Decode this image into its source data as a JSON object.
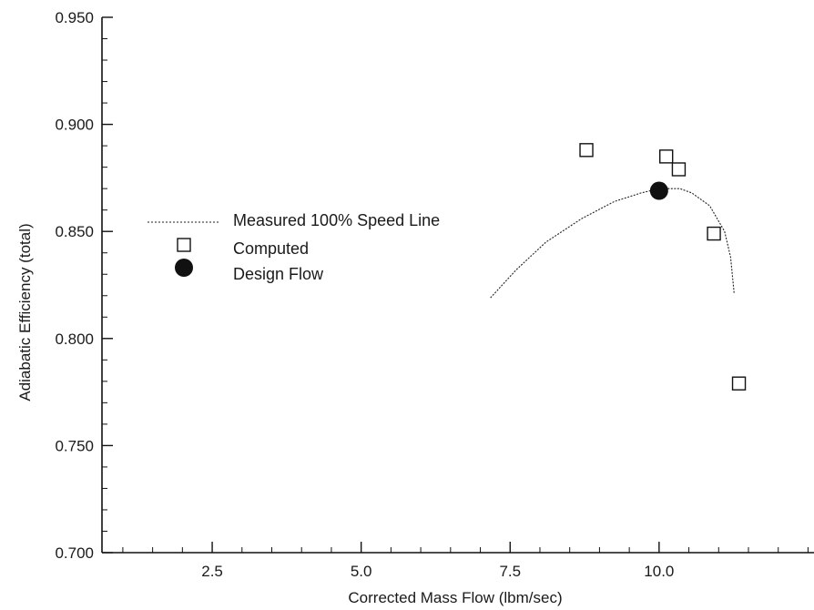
{
  "chart_data": {
    "type": "scatter",
    "xlabel": "Corrected Mass Flow (lbm/sec)",
    "ylabel": "Adiabatic Efficiency (total)",
    "xlim": [
      0.65,
      12.6
    ],
    "ylim": [
      0.7,
      0.95
    ],
    "x_ticks": [
      2.5,
      5.0,
      7.5,
      10.0
    ],
    "x_tick_labels": [
      "2.5",
      "5.0",
      "7.5",
      "10.0"
    ],
    "y_ticks": [
      0.7,
      0.75,
      0.8,
      0.85,
      0.9,
      0.95
    ],
    "y_tick_labels": [
      "0.700",
      "0.750",
      "0.800",
      "0.850",
      "0.900",
      "0.950"
    ],
    "grid": false,
    "legend_position": "middle-left",
    "series": [
      {
        "name": "Measured 100% Speed Line",
        "kind": "line",
        "style": "dotted",
        "x": [
          7.17,
          7.6,
          8.1,
          8.7,
          9.25,
          9.7,
          10.0,
          10.35,
          10.55,
          10.85,
          11.1,
          11.2,
          11.26
        ],
        "y": [
          0.819,
          0.832,
          0.845,
          0.856,
          0.864,
          0.868,
          0.87,
          0.87,
          0.868,
          0.862,
          0.85,
          0.838,
          0.821
        ]
      },
      {
        "name": "Computed",
        "kind": "marker",
        "marker": "open-square",
        "x": [
          8.78,
          10.12,
          10.33,
          10.92,
          11.34
        ],
        "y": [
          0.888,
          0.885,
          0.879,
          0.849,
          0.779
        ]
      },
      {
        "name": "Design Flow",
        "kind": "marker",
        "marker": "filled-circle",
        "x": [
          10.0
        ],
        "y": [
          0.869
        ]
      }
    ]
  }
}
